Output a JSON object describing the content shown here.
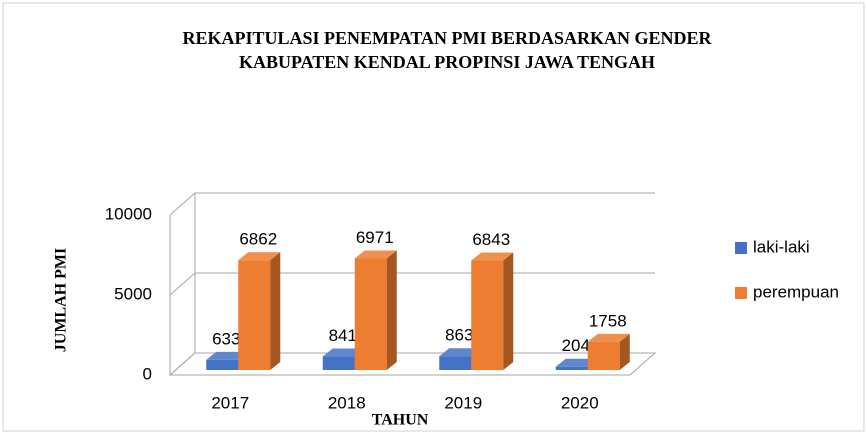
{
  "chart_data": {
    "type": "bar3d",
    "title": [
      "REKAPITULASI PENEMPATAN PMI BERDASARKAN GENDER",
      "KABUPATEN KENDAL PROPINSI JAWA TENGAH"
    ],
    "xlabel": "TAHUN",
    "ylabel": "JUMLAH PMI",
    "categories": [
      "2017",
      "2018",
      "2019",
      "2020"
    ],
    "series": [
      {
        "name": "laki-laki",
        "color": "#4472c4",
        "values": [
          633,
          841,
          863,
          204
        ]
      },
      {
        "name": "perempuan",
        "color": "#ed7d31",
        "values": [
          6862,
          6971,
          6843,
          1758
        ]
      }
    ],
    "ylim": [
      0,
      10000
    ],
    "yticks": [
      0,
      5000,
      10000
    ],
    "grid": true,
    "legend": "right"
  }
}
